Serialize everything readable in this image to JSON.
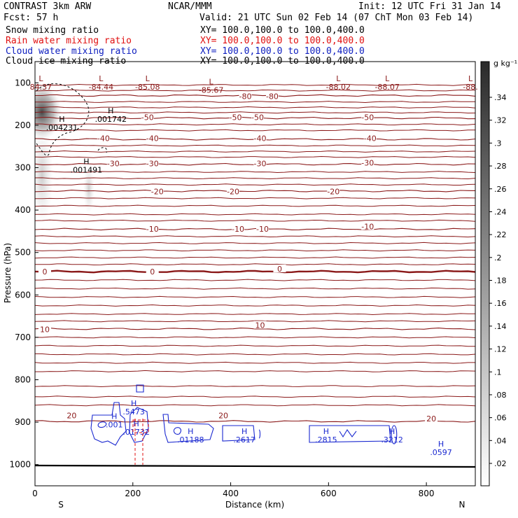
{
  "header": {
    "model": "CONTRAST  3km ARW",
    "fcst": "Fcst:    57 h",
    "center": "NCAR/MMM",
    "init": "Init: 12 UTC Fri 31 Jan 14",
    "valid": "Valid: 21 UTC Sun 02 Feb 14 (07 ChT Mon 03 Feb 14)"
  },
  "fields": [
    {
      "name": "Snow mixing ratio",
      "xy": "XY= 100.0,100.0 to 100.0,400.0",
      "color": "#000000"
    },
    {
      "name": "Rain water mixing ratio",
      "xy": "XY= 100.0,100.0 to 100.0,400.0",
      "color": "#e01010"
    },
    {
      "name": "Cloud water mixing ratio",
      "xy": "XY= 100.0,100.0 to 100.0,400.0",
      "color": "#1020c0"
    },
    {
      "name": "Cloud ice mixing ratio",
      "xy": "XY= 100.0,100.0 to 100.0,400.0",
      "color": "#000000"
    }
  ],
  "colorbar": {
    "units": "g kg⁻¹",
    "ticks": [
      ".34",
      ".32",
      ".3",
      ".28",
      ".26",
      ".24",
      ".22",
      ".2",
      ".18",
      ".16",
      ".14",
      ".12",
      ".1",
      ".08",
      ".06",
      ".04",
      ".02"
    ]
  },
  "chart_data": {
    "type": "line",
    "xlabel": "Distance (km)",
    "ylabel": "Pressure (hPa)",
    "xlim": [
      0,
      900
    ],
    "ylim": [
      1050,
      50
    ],
    "x_ticks": [
      "0",
      "200",
      "400",
      "600",
      "800"
    ],
    "y_ticks": [
      "100",
      "200",
      "300",
      "400",
      "500",
      "600",
      "700",
      "800",
      "900",
      "1000"
    ],
    "x_endpoints": [
      "S",
      "N"
    ],
    "temperature_contours": [
      {
        "level": "-80",
        "pressure": 130
      },
      {
        "level": "-50",
        "pressure": 183
      },
      {
        "level": "-40",
        "pressure": 233
      },
      {
        "level": "-30",
        "pressure": 292
      },
      {
        "level": "-20",
        "pressure": 355
      },
      {
        "level": "-10",
        "pressure": 445
      },
      {
        "level": "0",
        "pressure": 545
      },
      {
        "level": "10",
        "pressure": 680
      },
      {
        "level": "20",
        "pressure": 898
      }
    ],
    "contour_labels": [
      {
        "text": "-80",
        "x": 430,
        "p": 133
      },
      {
        "text": "-80",
        "x": 485,
        "p": 133
      },
      {
        "text": "-50",
        "x": 230,
        "p": 183
      },
      {
        "text": "-50",
        "x": 410,
        "p": 183
      },
      {
        "text": "-50",
        "x": 455,
        "p": 183
      },
      {
        "text": "-50",
        "x": 680,
        "p": 183
      },
      {
        "text": "-40",
        "x": 140,
        "p": 232
      },
      {
        "text": "-40",
        "x": 240,
        "p": 232
      },
      {
        "text": "-40",
        "x": 460,
        "p": 232
      },
      {
        "text": "-40",
        "x": 685,
        "p": 232
      },
      {
        "text": "-30",
        "x": 160,
        "p": 292
      },
      {
        "text": "-30",
        "x": 240,
        "p": 292
      },
      {
        "text": "-30",
        "x": 460,
        "p": 292
      },
      {
        "text": "-30",
        "x": 680,
        "p": 290
      },
      {
        "text": "-20",
        "x": 250,
        "p": 358
      },
      {
        "text": "-20",
        "x": 405,
        "p": 358
      },
      {
        "text": "-20",
        "x": 610,
        "p": 358
      },
      {
        "text": "-10",
        "x": 240,
        "p": 446
      },
      {
        "text": "-10",
        "x": 415,
        "p": 446
      },
      {
        "text": "-10",
        "x": 465,
        "p": 446
      },
      {
        "text": "-10",
        "x": 680,
        "p": 440
      },
      {
        "text": "0",
        "x": 20,
        "p": 547
      },
      {
        "text": "0",
        "x": 240,
        "p": 547
      },
      {
        "text": "0",
        "x": 500,
        "p": 540
      },
      {
        "text": "10",
        "x": 20,
        "p": 683
      },
      {
        "text": "10",
        "x": 460,
        "p": 673
      },
      {
        "text": "20",
        "x": 75,
        "p": 886
      },
      {
        "text": "20",
        "x": 385,
        "p": 886
      },
      {
        "text": "20",
        "x": 810,
        "p": 893
      }
    ],
    "extrema": [
      {
        "type": "L",
        "value": "84.37",
        "x": 12,
        "p": 96
      },
      {
        "type": "L",
        "value": "-84.44",
        "x": 135,
        "p": 96
      },
      {
        "type": "L",
        "value": "-85.08",
        "x": 230,
        "p": 96
      },
      {
        "type": "L",
        "value": "-85.67",
        "x": 360,
        "p": 104
      },
      {
        "type": "L",
        "value": "-88.02",
        "x": 620,
        "p": 96
      },
      {
        "type": "L",
        "value": "-88.07",
        "x": 720,
        "p": 96
      },
      {
        "type": "L",
        "value": "-88.",
        "x": 890,
        "p": 96
      },
      {
        "type": "H",
        "value": ".004231",
        "x": 55,
        "p": 192
      },
      {
        "type": "H",
        "value": ".001742",
        "x": 155,
        "p": 172
      },
      {
        "type": "H",
        "value": ".001491",
        "x": 105,
        "p": 292
      },
      {
        "type": "H",
        "value": ".5473",
        "x": 202,
        "p": 862
      },
      {
        "type": "H",
        "value": ".001",
        "x": 162,
        "p": 892
      },
      {
        "type": "H",
        "value": ".01732",
        "x": 207,
        "p": 910
      },
      {
        "type": "H",
        "value": ".01188",
        "x": 318,
        "p": 928
      },
      {
        "type": "H",
        "value": ".2617",
        "x": 428,
        "p": 928
      },
      {
        "type": "H",
        "value": ".2815",
        "x": 595,
        "p": 928
      },
      {
        "type": "H",
        "value": ".3212",
        "x": 730,
        "p": 928
      },
      {
        "type": "H",
        "value": ".0597",
        "x": 830,
        "p": 958
      }
    ]
  }
}
